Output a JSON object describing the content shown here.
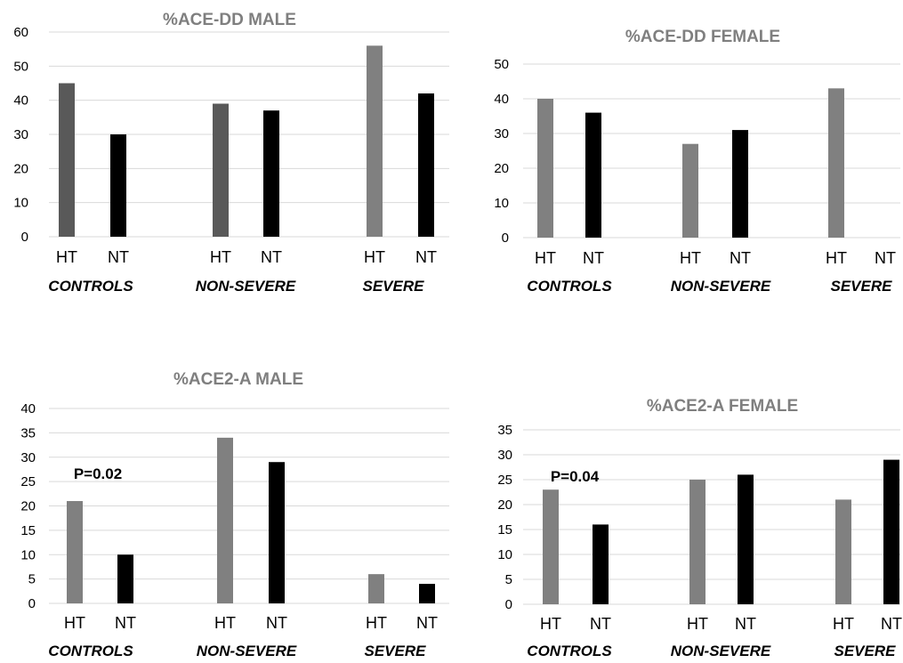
{
  "colors": {
    "ht": "#7f7f7f",
    "ht_male_ace_dd": "#595959",
    "nt": "#000000"
  },
  "chart_data": [
    {
      "type": "bar",
      "title": "%ACE-DD MALE",
      "groups": [
        "CONTROLS",
        "NON-SEVERE",
        "SEVERE"
      ],
      "bar_labels": [
        "HT",
        "NT"
      ],
      "values": [
        [
          45,
          30
        ],
        [
          39,
          37
        ],
        [
          56,
          42
        ]
      ],
      "bar_colors": [
        [
          "#595959",
          "#000000"
        ],
        [
          "#595959",
          "#000000"
        ],
        [
          "#808080",
          "#000000"
        ]
      ],
      "ylim": [
        0,
        60
      ],
      "yticks": [
        0,
        10,
        20,
        30,
        40,
        50,
        60
      ],
      "grid": true,
      "annotation": ""
    },
    {
      "type": "bar",
      "title": "%ACE-DD FEMALE",
      "groups": [
        "CONTROLS",
        "NON-SEVERE",
        "SEVERE"
      ],
      "bar_labels": [
        "HT",
        "NT"
      ],
      "values": [
        [
          40,
          36
        ],
        [
          27,
          31
        ],
        [
          43,
          0
        ]
      ],
      "bar_colors": [
        [
          "#808080",
          "#000000"
        ],
        [
          "#808080",
          "#000000"
        ],
        [
          "#808080",
          "#000000"
        ]
      ],
      "ylim": [
        0,
        50
      ],
      "yticks": [
        0,
        10,
        20,
        30,
        40,
        50
      ],
      "grid": true,
      "annotation": ""
    },
    {
      "type": "bar",
      "title": "%ACE2-A MALE",
      "groups": [
        "CONTROLS",
        "NON-SEVERE",
        "SEVERE"
      ],
      "bar_labels": [
        "HT",
        "NT"
      ],
      "values": [
        [
          21,
          10
        ],
        [
          34,
          29
        ],
        [
          6,
          4
        ]
      ],
      "bar_colors": [
        [
          "#808080",
          "#000000"
        ],
        [
          "#808080",
          "#000000"
        ],
        [
          "#808080",
          "#000000"
        ]
      ],
      "ylim": [
        0,
        40
      ],
      "yticks": [
        0,
        5,
        10,
        15,
        20,
        25,
        30,
        35,
        40
      ],
      "grid": true,
      "annotation": "P=0.02"
    },
    {
      "type": "bar",
      "title": "%ACE2-A FEMALE",
      "groups": [
        "CONTROLS",
        "NON-SEVERE",
        "SEVERE"
      ],
      "bar_labels": [
        "HT",
        "NT"
      ],
      "values": [
        [
          23,
          16
        ],
        [
          25,
          26
        ],
        [
          21,
          29
        ]
      ],
      "bar_colors": [
        [
          "#808080",
          "#000000"
        ],
        [
          "#808080",
          "#000000"
        ],
        [
          "#808080",
          "#000000"
        ]
      ],
      "ylim": [
        0,
        35
      ],
      "yticks": [
        0,
        5,
        10,
        15,
        20,
        25,
        30,
        35
      ],
      "grid": true,
      "annotation": "P=0.04"
    }
  ]
}
